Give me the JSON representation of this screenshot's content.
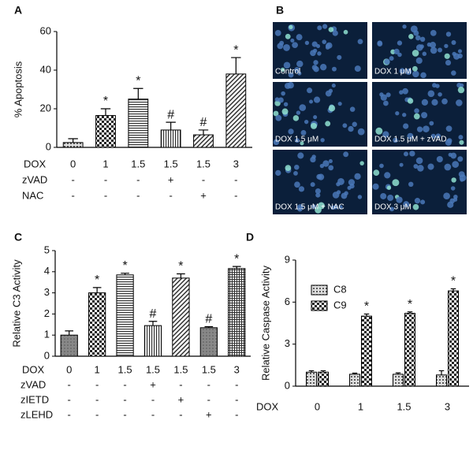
{
  "chart_data": [
    {
      "type": "bar",
      "label": "A",
      "ylabel": "% Apoptosis",
      "xlabel": "DOX",
      "categories": [
        "0",
        "1",
        "1.5",
        "1.5",
        "1.5",
        "3"
      ],
      "values": [
        2.5,
        16.5,
        25,
        9,
        6.5,
        38
      ],
      "errors": [
        2,
        3.5,
        5.5,
        4,
        2.5,
        8.5
      ],
      "annotations": [
        null,
        "*",
        "*",
        "#",
        "#",
        "*"
      ],
      "patterns": [
        "dots",
        "checker",
        "hlines",
        "vlines",
        "diag",
        "diag"
      ],
      "conditions": [
        {
          "name": "zVAD",
          "values": [
            "-",
            "-",
            "-",
            "+",
            "-",
            "-"
          ]
        },
        {
          "name": "NAC",
          "values": [
            "-",
            "-",
            "-",
            "-",
            "+",
            "-"
          ]
        }
      ],
      "ylim": [
        0,
        60
      ],
      "yticks": [
        0,
        20,
        40,
        60
      ]
    },
    {
      "type": "bar",
      "label": "C",
      "ylabel": "Relative C3 Activity",
      "xlabel": "DOX",
      "categories": [
        "0",
        "1",
        "1.5",
        "1.5",
        "1.5",
        "1.5",
        "3"
      ],
      "values": [
        1.0,
        3.0,
        3.85,
        1.45,
        3.7,
        1.35,
        4.15
      ],
      "errors": [
        0.2,
        0.25,
        0.08,
        0.2,
        0.2,
        0.05,
        0.1
      ],
      "annotations": [
        null,
        "*",
        "*",
        "#",
        "*",
        "#",
        "*"
      ],
      "patterns": [
        "gray",
        "checker",
        "hlines",
        "vlines",
        "diag",
        "gray",
        "grid"
      ],
      "conditions": [
        {
          "name": "zVAD",
          "values": [
            "-",
            "-",
            "-",
            "+",
            "-",
            "-",
            "-"
          ]
        },
        {
          "name": "zIETD",
          "values": [
            "-",
            "-",
            "-",
            "-",
            "+",
            "-",
            "-"
          ]
        },
        {
          "name": "zLEHD",
          "values": [
            "-",
            "-",
            "-",
            "-",
            "-",
            "+",
            "-"
          ]
        }
      ],
      "ylim": [
        0,
        5
      ],
      "yticks": [
        0,
        1,
        2,
        3,
        4,
        5
      ]
    },
    {
      "type": "grouped_bar",
      "label": "D",
      "ylabel": "Relative Caspase Activity",
      "xlabel": "DOX",
      "categories": [
        "0",
        "1",
        "1.5",
        "3"
      ],
      "series": [
        {
          "name": "C8",
          "pattern": "dots",
          "values": [
            1.0,
            0.85,
            0.85,
            0.8
          ],
          "errors": [
            0.1,
            0.08,
            0.1,
            0.3
          ],
          "annotations": [
            null,
            null,
            null,
            null
          ]
        },
        {
          "name": "C9",
          "pattern": "checker",
          "values": [
            1.0,
            5.0,
            5.2,
            6.8
          ],
          "errors": [
            0.1,
            0.15,
            0.1,
            0.15
          ],
          "annotations": [
            null,
            "*",
            "*",
            "*"
          ]
        }
      ],
      "ylim": [
        0,
        9
      ],
      "yticks": [
        0,
        3,
        6,
        9
      ]
    }
  ],
  "figure_b": {
    "label": "B",
    "images": [
      "Control",
      "DOX 1 μM",
      "DOX 1.5 μM",
      "DOX 1.5 μM + zVAD",
      "DOX 1.5 μM + NAC",
      "DOX 3 μM"
    ]
  }
}
